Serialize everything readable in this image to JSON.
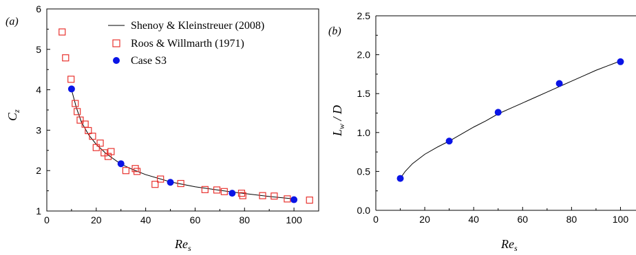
{
  "chart_data": [
    {
      "panel_label": "(a)",
      "type": "scatter",
      "xlabel_main": "Re",
      "xlabel_sub": "s",
      "ylabel_main": "C",
      "ylabel_sub": "z",
      "xlim": [
        0,
        110
      ],
      "ylim": [
        1,
        6
      ],
      "xticks": [
        0,
        20,
        40,
        60,
        80,
        100
      ],
      "yticks": [
        1,
        2,
        3,
        4,
        5,
        6
      ],
      "legend_position": "top-right",
      "series": [
        {
          "name": "Shenoy & Kleinstreuer (2008)",
          "kind": "line",
          "color": "#000000",
          "x": [
            10,
            12,
            14,
            17,
            20,
            24,
            30,
            35,
            40,
            50,
            60,
            75,
            90,
            100
          ],
          "y": [
            4.0,
            3.55,
            3.2,
            2.88,
            2.65,
            2.42,
            2.16,
            2.02,
            1.9,
            1.72,
            1.6,
            1.47,
            1.36,
            1.3
          ]
        },
        {
          "name": "Roos & Willmarth (1971)",
          "kind": "open-square",
          "color": "#e8322e",
          "x": [
            6.2,
            7.6,
            9.8,
            11.5,
            12.3,
            13.5,
            15.5,
            16.8,
            18.5,
            20.0,
            21.6,
            23.2,
            24.8,
            26.0,
            32.0,
            35.8,
            36.5,
            43.8,
            46.0,
            54.2,
            64.0,
            68.8,
            71.8,
            78.8,
            79.3,
            87.3,
            92.0,
            97.3,
            106.3
          ],
          "y": [
            5.43,
            4.79,
            4.26,
            3.66,
            3.46,
            3.25,
            3.15,
            2.99,
            2.85,
            2.57,
            2.68,
            2.44,
            2.35,
            2.47,
            2.0,
            2.05,
            1.98,
            1.66,
            1.79,
            1.68,
            1.53,
            1.52,
            1.48,
            1.44,
            1.38,
            1.38,
            1.37,
            1.3,
            1.27
          ]
        },
        {
          "name": "Case S3",
          "kind": "filled-circle",
          "color": "#0a14e6",
          "x": [
            10,
            30,
            50,
            75,
            100
          ],
          "y": [
            4.02,
            2.17,
            1.71,
            1.44,
            1.28
          ]
        }
      ]
    },
    {
      "panel_label": "(b)",
      "type": "line",
      "xlabel_main": "Re",
      "xlabel_sub": "s",
      "ylabel_main": "L",
      "ylabel_sub": "w",
      "ylabel_suffix": " / D",
      "xlim": [
        0,
        110
      ],
      "ylim": [
        0.0,
        2.5
      ],
      "xticks": [
        0,
        20,
        40,
        60,
        80,
        100
      ],
      "xticklabels": [
        "0",
        "20",
        "40",
        "60",
        "80",
        "100"
      ],
      "yticks": [
        0.0,
        0.5,
        1.0,
        1.5,
        2.0,
        2.5
      ],
      "yticklabels": [
        "0.0",
        "0.5",
        "1.0",
        "1.5",
        "2.0",
        "2.5"
      ],
      "series": [
        {
          "kind": "line",
          "color": "#000000",
          "x": [
            10,
            12,
            15,
            20,
            25,
            30,
            35,
            40,
            45,
            50,
            55,
            60,
            65,
            70,
            75,
            80,
            85,
            90,
            95,
            100
          ],
          "y": [
            0.41,
            0.5,
            0.6,
            0.72,
            0.81,
            0.89,
            0.98,
            1.07,
            1.15,
            1.24,
            1.31,
            1.38,
            1.45,
            1.52,
            1.59,
            1.66,
            1.73,
            1.8,
            1.86,
            1.92
          ]
        },
        {
          "kind": "filled-circle",
          "color": "#0a14e6",
          "x": [
            10,
            30,
            50,
            75,
            100
          ],
          "y": [
            0.41,
            0.89,
            1.26,
            1.63,
            1.91
          ]
        }
      ]
    }
  ]
}
